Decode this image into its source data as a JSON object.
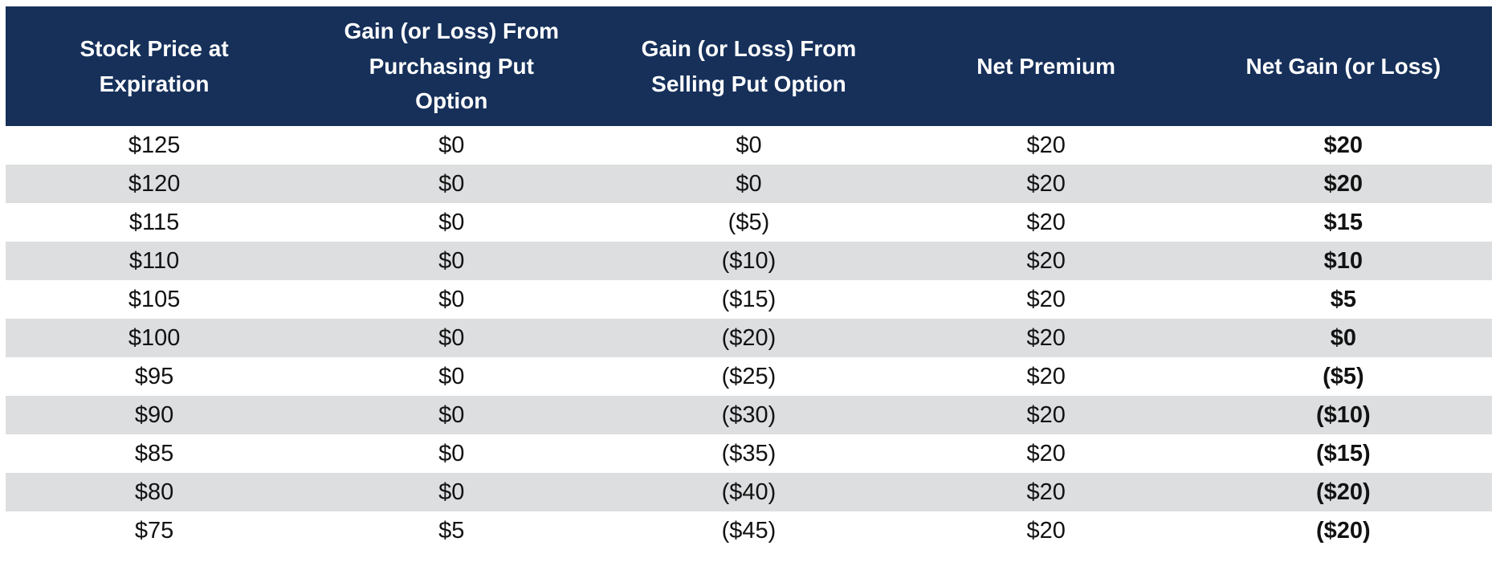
{
  "colors": {
    "header_bg": "#16305a",
    "header_text": "#ffffff",
    "row_bg": "#ffffff",
    "row_alt_bg": "#dcdee0",
    "body_text": "#121212"
  },
  "chart_data": {
    "type": "table",
    "title": "",
    "columns": [
      "Stock Price at Expiration",
      "Gain (or Loss) From Purchasing Put Option",
      "Gain (or Loss) From Selling Put Option",
      "Net Premium",
      "Net Gain (or Loss)"
    ],
    "column_display_lines": [
      [
        "Stock Price at",
        "Expiration"
      ],
      [
        "Gain (or Loss) From",
        "Purchasing Put",
        "Option"
      ],
      [
        "Gain (or Loss) From",
        "Selling Put Option"
      ],
      [
        "Net Premium"
      ],
      [
        "Net Gain (or Loss)"
      ]
    ],
    "rows": [
      [
        "$125",
        "$0",
        "$0",
        "$20",
        "$20"
      ],
      [
        "$120",
        "$0",
        "$0",
        "$20",
        "$20"
      ],
      [
        "$115",
        "$0",
        "($5)",
        "$20",
        "$15"
      ],
      [
        "$110",
        "$0",
        "($10)",
        "$20",
        "$10"
      ],
      [
        "$105",
        "$0",
        "($15)",
        "$20",
        "$5"
      ],
      [
        "$100",
        "$0",
        "($20)",
        "$20",
        "$0"
      ],
      [
        "$95",
        "$0",
        "($25)",
        "$20",
        "($5)"
      ],
      [
        "$90",
        "$0",
        "($30)",
        "$20",
        "($10)"
      ],
      [
        "$85",
        "$0",
        "($35)",
        "$20",
        "($15)"
      ],
      [
        "$80",
        "$0",
        "($40)",
        "$20",
        "($20)"
      ],
      [
        "$75",
        "$5",
        "($45)",
        "$20",
        "($20)"
      ]
    ],
    "layout": {
      "striped": true,
      "first_body_row_background": "white",
      "last_column_bold": true,
      "grid": false
    }
  }
}
